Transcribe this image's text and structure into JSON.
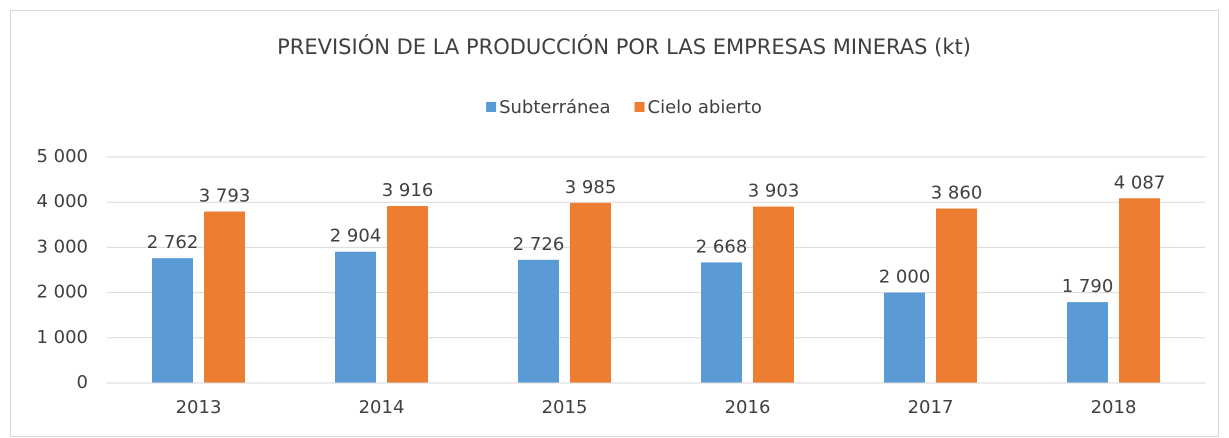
{
  "chart_data": {
    "type": "bar",
    "title": "PREVISIÓN DE LA PRODUCCIÓN POR LAS EMPRESAS MINERAS (kt)",
    "categories": [
      "2013",
      "2014",
      "2015",
      "2016",
      "2017",
      "2018"
    ],
    "series": [
      {
        "name": "Subterránea",
        "color": "#5b9bd5",
        "values": [
          2762,
          2904,
          2726,
          2668,
          2000,
          1790
        ],
        "value_labels": [
          "2 762",
          "2 904",
          "2 726",
          "2 668",
          "2 000",
          "1 790"
        ]
      },
      {
        "name": "Cielo abierto",
        "color": "#ed7d31",
        "values": [
          3793,
          3916,
          3985,
          3903,
          3860,
          4087
        ],
        "value_labels": [
          "3 793",
          "3 916",
          "3 985",
          "3 903",
          "3 860",
          "4 087"
        ]
      }
    ],
    "ylim": [
      0,
      5000
    ],
    "yticks": [
      0,
      {
        "value": 1000,
        "label": "1 000"
      },
      {
        "value": 2000,
        "label": "2 000"
      },
      {
        "value": 3000,
        "label": "3 000"
      },
      {
        "value": 4000,
        "label": "4 000"
      },
      {
        "value": 5000,
        "label": "5 000"
      }
    ],
    "grid": true,
    "legend": "top"
  }
}
